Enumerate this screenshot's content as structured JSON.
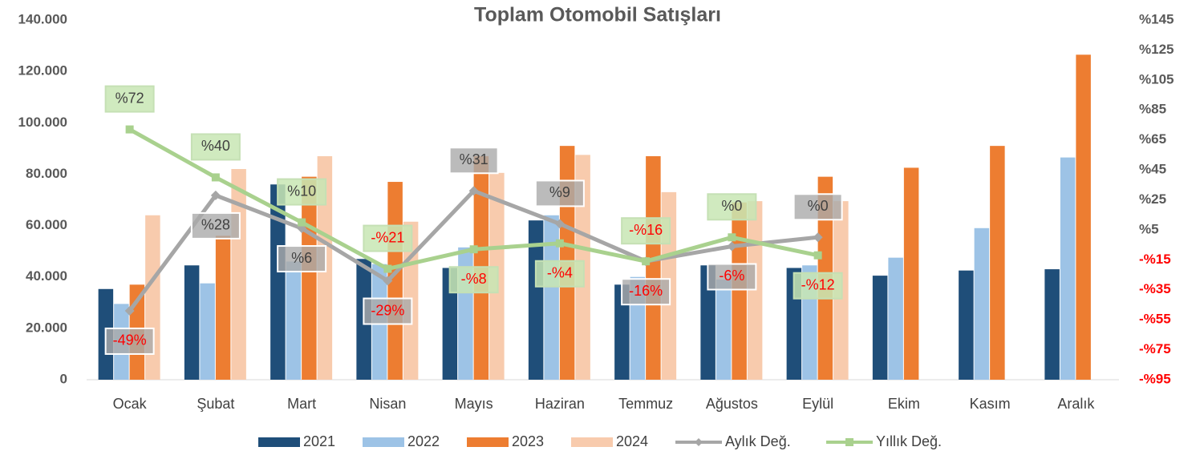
{
  "chart_data": {
    "type": "bar_line",
    "title": "Toplam Otomobil Satışları",
    "categories": [
      "Ocak",
      "Şubat",
      "Mart",
      "Nisan",
      "Mayıs",
      "Haziran",
      "Temmuz",
      "Ağustos",
      "Eylül",
      "Ekim",
      "Kasım",
      "Aralık"
    ],
    "series": [
      {
        "name": "2021",
        "color": "#1f4e79",
        "values": [
          35300,
          44500,
          76000,
          47000,
          43500,
          62000,
          37000,
          44500,
          43500,
          40500,
          42500,
          43000
        ]
      },
      {
        "name": "2022",
        "color": "#9dc3e6",
        "values": [
          29500,
          37500,
          46000,
          45000,
          51500,
          64000,
          40000,
          39000,
          44500,
          47500,
          59000,
          86500
        ]
      },
      {
        "name": "2023",
        "color": "#ed7d31",
        "values": [
          37000,
          56000,
          79000,
          77000,
          87000,
          91000,
          87000,
          69000,
          79000,
          82500,
          91000,
          126500
        ]
      },
      {
        "name": "2024",
        "color": "#f8cbad",
        "values": [
          64000,
          82000,
          87000,
          61500,
          80500,
          87500,
          73000,
          69500,
          69500,
          null,
          null,
          null
        ]
      },
      {
        "name": "Aylık Değ.",
        "color": "#a6a6a6",
        "axis": "y2",
        "values": [
          -49,
          28,
          6,
          -29,
          31,
          9,
          -16,
          -6,
          0,
          null,
          null,
          null
        ],
        "value_labels": [
          "-49%",
          "%28",
          "%6",
          "-29%",
          "%31",
          "%9",
          "-16%",
          "-6%",
          "%0",
          null,
          null,
          null
        ]
      },
      {
        "name": "Yıllık Değ.",
        "color": "#a9d18e",
        "axis": "y2",
        "values": [
          72,
          40,
          10,
          -21,
          -8,
          -4,
          -16,
          0,
          -12,
          null,
          null,
          null
        ],
        "value_labels": [
          "%72",
          "%40",
          "%10",
          "-%21",
          "-%8",
          "-%4",
          "-%16",
          "%0",
          "-%12",
          null,
          null,
          null
        ]
      }
    ],
    "ylim": [
      0,
      140000
    ],
    "yticks": [
      0,
      {
        "value": 20000,
        "label": "20.000"
      },
      {
        "value": 40000,
        "label": "40.000"
      },
      {
        "value": 60000,
        "label": "60.000"
      },
      {
        "value": 80000,
        "label": "80.000"
      },
      {
        "value": 100000,
        "label": "100.000"
      },
      {
        "value": 120000,
        "label": "120.000"
      },
      {
        "value": 140000,
        "label": "140.000"
      }
    ],
    "y2lim": [
      -95,
      145
    ],
    "y2ticks": [
      {
        "value": -95,
        "label": "-%95"
      },
      {
        "value": -75,
        "label": "-%75"
      },
      {
        "value": -55,
        "label": "-%55"
      },
      {
        "value": -35,
        "label": "-%35"
      },
      {
        "value": -15,
        "label": "-%15"
      },
      {
        "value": 5,
        "label": "%5"
      },
      {
        "value": 25,
        "label": "%25"
      },
      {
        "value": 45,
        "label": "%45"
      },
      {
        "value": 65,
        "label": "%65"
      },
      {
        "value": 85,
        "label": "%85"
      },
      {
        "value": 105,
        "label": "%105"
      },
      {
        "value": 125,
        "label": "%125"
      },
      {
        "value": 145,
        "label": "%145"
      }
    ],
    "legend": "bottom",
    "grid": false
  }
}
